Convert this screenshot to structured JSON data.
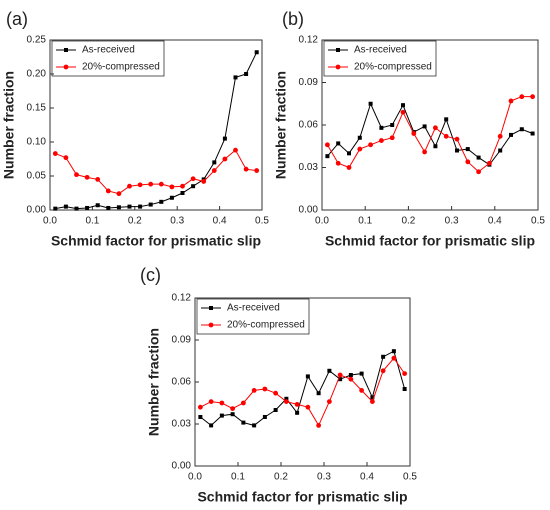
{
  "chart_data": [
    {
      "type": "line",
      "label": "(a)",
      "xlabel": "Schmid factor for prismatic slip",
      "ylabel": "Number fraction",
      "x": [
        0.0125,
        0.0375,
        0.0625,
        0.0875,
        0.1125,
        0.1375,
        0.1625,
        0.1875,
        0.2125,
        0.2375,
        0.2625,
        0.2875,
        0.3125,
        0.3375,
        0.3625,
        0.3875,
        0.4125,
        0.4375,
        0.4625,
        0.4875
      ],
      "series": [
        {
          "name": "As-received",
          "color": "#000000",
          "marker": "square",
          "values": [
            0.002,
            0.005,
            0.002,
            0.003,
            0.007,
            0.003,
            0.004,
            0.005,
            0.005,
            0.008,
            0.012,
            0.018,
            0.025,
            0.035,
            0.045,
            0.07,
            0.105,
            0.195,
            0.2,
            0.232
          ]
        },
        {
          "name": "20%-compressed",
          "color": "#ff0000",
          "marker": "circle",
          "values": [
            0.083,
            0.077,
            0.052,
            0.048,
            0.045,
            0.028,
            0.024,
            0.035,
            0.037,
            0.038,
            0.038,
            0.034,
            0.035,
            0.046,
            0.042,
            0.058,
            0.075,
            0.088,
            0.06,
            0.058
          ]
        }
      ],
      "xlim": [
        0,
        0.5
      ],
      "xticks": [
        {
          "value": 0,
          "label": "0.0"
        },
        0.1,
        0.2,
        0.3,
        0.4,
        0.5
      ],
      "ylim": [
        0,
        0.25
      ],
      "yticks": [
        {
          "value": 0,
          "label": "0.00"
        },
        0.05,
        {
          "value": 0.1,
          "label": "0.10"
        },
        0.15,
        {
          "value": 0.2,
          "label": "0.20"
        },
        0.25
      ],
      "legend": "upper left"
    },
    {
      "type": "line",
      "label": "(b)",
      "xlabel": "Schmid factor for prismatic slip",
      "ylabel": "Number fraction",
      "x": [
        0.0125,
        0.0375,
        0.0625,
        0.0875,
        0.1125,
        0.1375,
        0.1625,
        0.1875,
        0.2125,
        0.2375,
        0.2625,
        0.2875,
        0.3125,
        0.3375,
        0.3625,
        0.3875,
        0.4125,
        0.4375,
        0.4625,
        0.4875
      ],
      "series": [
        {
          "name": "As-received",
          "color": "#000000",
          "marker": "square",
          "values": [
            0.038,
            0.047,
            0.04,
            0.051,
            0.075,
            0.058,
            0.06,
            0.074,
            0.055,
            0.059,
            0.045,
            0.064,
            0.042,
            0.043,
            0.037,
            0.032,
            0.042,
            0.053,
            0.057,
            0.054
          ]
        },
        {
          "name": "20%-compressed",
          "color": "#ff0000",
          "marker": "circle",
          "values": [
            0.046,
            0.033,
            0.03,
            0.043,
            0.046,
            0.049,
            0.051,
            0.069,
            0.054,
            0.041,
            0.058,
            0.052,
            0.05,
            0.034,
            0.027,
            0.033,
            0.052,
            0.077,
            0.08,
            0.08
          ]
        }
      ],
      "xlim": [
        0,
        0.5
      ],
      "xticks": [
        {
          "value": 0,
          "label": "0.0"
        },
        0.1,
        0.2,
        0.3,
        0.4,
        0.5
      ],
      "ylim": [
        0,
        0.12
      ],
      "yticks": [
        {
          "value": 0,
          "label": "0.00"
        },
        0.03,
        0.06,
        0.09,
        0.12
      ],
      "legend": "upper left"
    },
    {
      "type": "line",
      "label": "(c)",
      "xlabel": "Schmid factor for prismatic slip",
      "ylabel": "Number fraction",
      "x": [
        0.0125,
        0.0375,
        0.0625,
        0.0875,
        0.1125,
        0.1375,
        0.1625,
        0.1875,
        0.2125,
        0.2375,
        0.2625,
        0.2875,
        0.3125,
        0.3375,
        0.3625,
        0.3875,
        0.4125,
        0.4375,
        0.4625,
        0.4875
      ],
      "series": [
        {
          "name": "As-received",
          "color": "#000000",
          "marker": "square",
          "values": [
            0.035,
            0.029,
            0.036,
            0.037,
            0.031,
            0.029,
            0.035,
            0.04,
            0.048,
            0.038,
            0.064,
            0.052,
            0.068,
            0.062,
            0.065,
            0.066,
            0.049,
            0.078,
            0.082,
            0.055
          ]
        },
        {
          "name": "20%-compressed",
          "color": "#ff0000",
          "marker": "circle",
          "values": [
            0.042,
            0.046,
            0.045,
            0.041,
            0.045,
            0.054,
            0.055,
            0.052,
            0.046,
            0.044,
            0.042,
            0.029,
            0.046,
            0.065,
            0.062,
            0.054,
            0.046,
            0.068,
            0.077,
            0.066
          ]
        }
      ],
      "xlim": [
        0,
        0.5
      ],
      "xticks": [
        {
          "value": 0,
          "label": "0.0"
        },
        0.1,
        0.2,
        0.3,
        0.4,
        0.5
      ],
      "ylim": [
        0,
        0.12
      ],
      "yticks": [
        {
          "value": 0,
          "label": "0.00"
        },
        0.03,
        0.06,
        0.09,
        0.12
      ],
      "legend": "upper left"
    }
  ]
}
